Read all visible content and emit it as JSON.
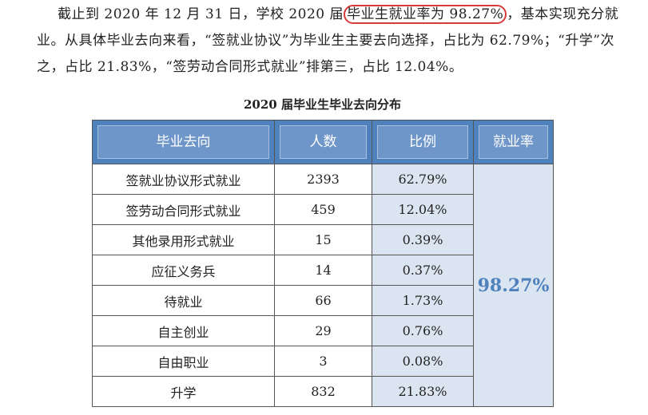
{
  "paragraph": [
    "截止到 2020 年 12 月 31 日，学校 2020 届",
    "毕业生就业率为 98.27%",
    "，基本实现充分就业。从具体毕业去向来看，“签就业协议”为毕业生主要去向选择，占比为 62.79%；“升学”次之，占比 21.83%，“签劳动合同形式就业”排第三，占比 12.04%。"
  ],
  "table": {
    "title": "2020 届毕业生毕业去向分布",
    "headers": [
      "毕业去向",
      "人数",
      "比例",
      "就业率"
    ],
    "rows": [
      [
        "签就业协议形式就业",
        "2393",
        "62.79%"
      ],
      [
        "签劳动合同形式就业",
        "459",
        "12.04%"
      ],
      [
        "其他录用形式就业",
        "15",
        "0.39%"
      ],
      [
        "应征义务兵",
        "14",
        "0.37%"
      ],
      [
        "待就业",
        "66",
        "1.73%"
      ],
      [
        "自主创业",
        "29",
        "0.76%"
      ],
      [
        "自由职业",
        "3",
        "0.08%"
      ],
      [
        "升学",
        "832",
        "21.83%"
      ]
    ],
    "employment_rate": "98.27%"
  }
}
